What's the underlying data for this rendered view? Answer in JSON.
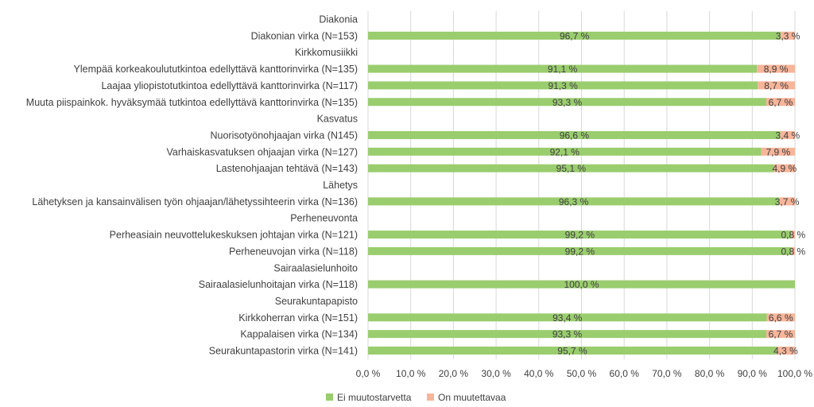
{
  "chart_data": {
    "type": "bar",
    "orientation": "horizontal",
    "stacked": "percent",
    "rows": [
      {
        "label": "Diakonia",
        "group": true
      },
      {
        "label": "Diakonian virka (N=153)",
        "values": [
          96.7,
          3.3
        ],
        "labels": [
          "96,7 %",
          "3,3 %"
        ]
      },
      {
        "label": "Kirkkomusiikki",
        "group": true
      },
      {
        "label": "Ylempää korkeakoulututkintoa edellyttävä kanttorinvirka (N=135)",
        "values": [
          91.1,
          8.9
        ],
        "labels": [
          "91,1 %",
          "8,9 %"
        ]
      },
      {
        "label": "Laajaa yliopistotutkintoa edellyttävä kanttorinvirka (N=117)",
        "values": [
          91.3,
          8.7
        ],
        "labels": [
          "91,3 %",
          "8,7 %"
        ]
      },
      {
        "label": "Muuta piispainkok. hyväksymää tutkintoa edellyttävä kanttorinvirka (N=135)",
        "values": [
          93.3,
          6.7
        ],
        "labels": [
          "93,3 %",
          "6,7 %"
        ]
      },
      {
        "label": "Kasvatus",
        "group": true
      },
      {
        "label": "Nuorisotyönohjaajan virka (N145)",
        "values": [
          96.6,
          3.4
        ],
        "labels": [
          "96,6 %",
          "3,4 %"
        ]
      },
      {
        "label": "Varhaiskasvatuksen ohjaajan virka (N=127)",
        "values": [
          92.1,
          7.9
        ],
        "labels": [
          "92,1 %",
          "7,9 %"
        ]
      },
      {
        "label": "Lastenohjaajan tehtävä (N=143)",
        "values": [
          95.1,
          4.9
        ],
        "labels": [
          "95,1 %",
          "4,9 %"
        ]
      },
      {
        "label": "Lähetys",
        "group": true
      },
      {
        "label": "Lähetyksen ja kansainvälisen työn ohjaajan/lähetyssihteerin virka (N=136)",
        "values": [
          96.3,
          3.7
        ],
        "labels": [
          "96,3 %",
          "3,7 %"
        ]
      },
      {
        "label": "Perheneuvonta",
        "group": true
      },
      {
        "label": "Perheasiain neuvottelukeskuksen johtajan virka (N=121)",
        "values": [
          99.2,
          0.8
        ],
        "labels": [
          "99,2 %",
          "0,8 %"
        ]
      },
      {
        "label": "Perheneuvojan virka (N=118)",
        "values": [
          99.2,
          0.8
        ],
        "labels": [
          "99,2 %",
          "0,8 %"
        ]
      },
      {
        "label": "Sairaalasielunhoito",
        "group": true
      },
      {
        "label": "Sairaalasielunhoitajan virka (N=118)",
        "values": [
          100.0,
          0
        ],
        "labels": [
          "100,0 %",
          ""
        ]
      },
      {
        "label": "Seurakuntapapisto",
        "group": true
      },
      {
        "label": "Kirkkoherran virka (N=151)",
        "values": [
          93.4,
          6.6
        ],
        "labels": [
          "93,4 %",
          "6,6 %"
        ]
      },
      {
        "label": "Kappalaisen virka (N=134)",
        "values": [
          93.3,
          6.7
        ],
        "labels": [
          "93,3 %",
          "6,7 %"
        ]
      },
      {
        "label": "Seurakuntapastorin virka (N=141)",
        "values": [
          95.7,
          4.3
        ],
        "labels": [
          "95,7 %",
          "4,3 %"
        ]
      }
    ],
    "series": [
      {
        "name": "Ei muutostarvetta",
        "color": "#9acd6e"
      },
      {
        "name": "On muutettavaa",
        "color": "#f7b59a"
      }
    ],
    "xlim": [
      0,
      100
    ],
    "xticks": [
      0,
      10,
      20,
      30,
      40,
      50,
      60,
      70,
      80,
      90,
      100
    ],
    "xtick_labels": [
      "0,0 %",
      "10,0 %",
      "20,0 %",
      "30,0 %",
      "40,0 %",
      "50,0 %",
      "60,0 %",
      "70,0 %",
      "80,0 %",
      "90,0 %",
      "100,0 %"
    ],
    "grid": "vertical",
    "grid_color": "#d9d9d9",
    "legend_position": "bottom-left"
  }
}
